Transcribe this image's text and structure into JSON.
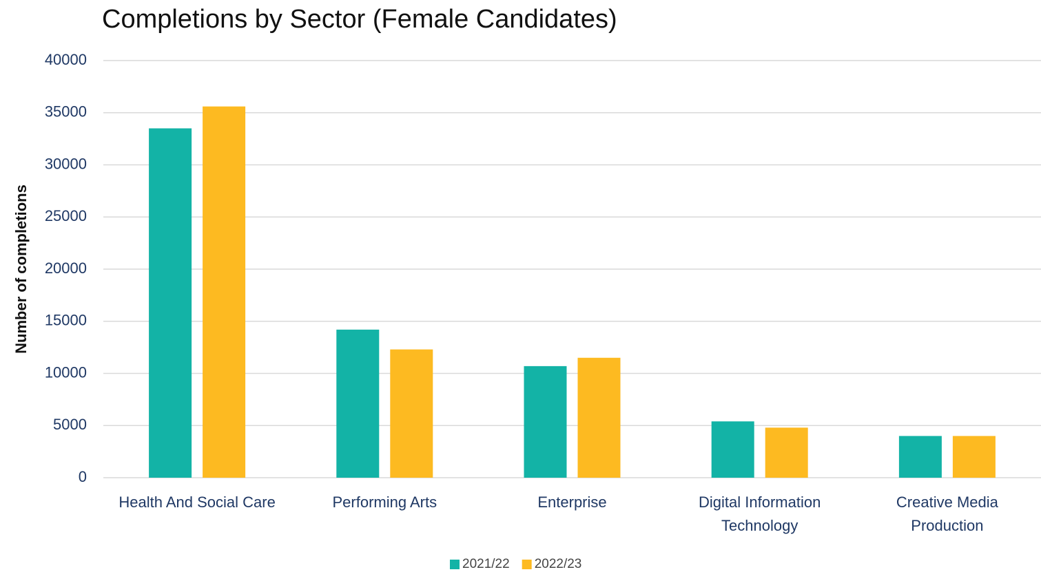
{
  "chart_data": {
    "type": "bar",
    "title": "Completions by Sector (Female Candidates)",
    "y_label": "Number of completions",
    "categories": [
      "Health And Social Care",
      "Performing Arts",
      "Enterprise",
      "Digital Information Technology",
      "Creative Media Production"
    ],
    "series": [
      {
        "name": "2021/22",
        "color": "#13b3a6",
        "values": [
          33500,
          14200,
          10700,
          5400,
          4000
        ]
      },
      {
        "name": "2022/23",
        "color": "#fdba21",
        "values": [
          35600,
          12300,
          11500,
          4800,
          4000
        ]
      }
    ],
    "ylim": [
      0,
      40000
    ],
    "yticks": [
      0,
      5000,
      10000,
      15000,
      20000,
      25000,
      30000,
      35000,
      40000
    ],
    "grid": true,
    "legend": "bottom"
  }
}
